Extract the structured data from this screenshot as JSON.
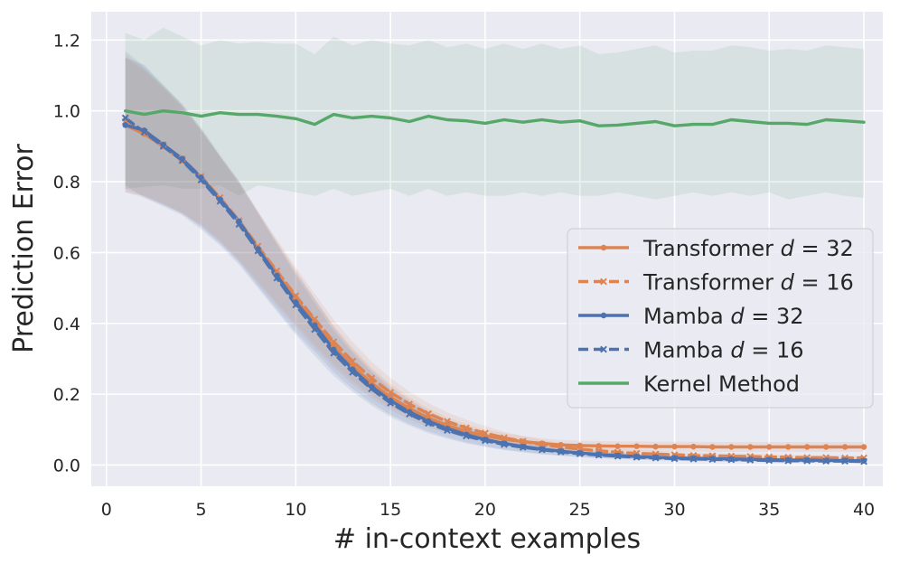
{
  "chart_data": {
    "type": "line",
    "title": "",
    "xlabel": "# in-context examples",
    "ylabel": "Prediction Error",
    "xlim": [
      -0.8,
      41
    ],
    "ylim": [
      -0.06,
      1.28
    ],
    "xticks": [
      0,
      5,
      10,
      15,
      20,
      25,
      30,
      35,
      40
    ],
    "yticks": [
      0.0,
      0.2,
      0.4,
      0.6,
      0.8,
      1.0,
      1.2
    ],
    "ytick_labels": [
      "0.0",
      "0.2",
      "0.4",
      "0.6",
      "0.8",
      "1.0",
      "1.2"
    ],
    "grid": true,
    "legend_position": "center-right",
    "x": [
      1,
      2,
      3,
      4,
      5,
      6,
      7,
      8,
      9,
      10,
      11,
      12,
      13,
      14,
      15,
      16,
      17,
      18,
      19,
      20,
      21,
      22,
      23,
      24,
      25,
      26,
      27,
      28,
      29,
      30,
      31,
      32,
      33,
      34,
      35,
      36,
      37,
      38,
      39,
      40
    ],
    "series": [
      {
        "name": "Transformer d = 32",
        "legend_prefix": "Transformer",
        "legend_var": "d",
        "legend_value": "32",
        "color": "#dd8452",
        "dash": "solid",
        "marker": "dot",
        "values": [
          0.96,
          0.935,
          0.9,
          0.86,
          0.81,
          0.75,
          0.688,
          0.613,
          0.54,
          0.47,
          0.4,
          0.335,
          0.28,
          0.232,
          0.192,
          0.16,
          0.133,
          0.112,
          0.095,
          0.082,
          0.073,
          0.066,
          0.061,
          0.057,
          0.055,
          0.054,
          0.053,
          0.053,
          0.052,
          0.052,
          0.052,
          0.051,
          0.051,
          0.051,
          0.051,
          0.051,
          0.051,
          0.051,
          0.051,
          0.051
        ],
        "band_low": [
          0.77,
          0.755,
          0.735,
          0.71,
          0.675,
          0.63,
          0.575,
          0.512,
          0.45,
          0.388,
          0.33,
          0.275,
          0.228,
          0.188,
          0.155,
          0.128,
          0.106,
          0.089,
          0.075,
          0.064,
          0.056,
          0.05,
          0.046,
          0.043,
          0.041,
          0.04,
          0.039,
          0.039,
          0.038,
          0.038,
          0.038,
          0.037,
          0.037,
          0.037,
          0.037,
          0.037,
          0.037,
          0.037,
          0.037,
          0.037
        ],
        "band_high": [
          1.15,
          1.115,
          1.065,
          1.01,
          0.945,
          0.87,
          0.8,
          0.715,
          0.63,
          0.552,
          0.47,
          0.395,
          0.332,
          0.276,
          0.229,
          0.192,
          0.16,
          0.135,
          0.115,
          0.1,
          0.09,
          0.082,
          0.076,
          0.071,
          0.069,
          0.068,
          0.067,
          0.067,
          0.066,
          0.066,
          0.066,
          0.065,
          0.065,
          0.065,
          0.065,
          0.065,
          0.065,
          0.065,
          0.065,
          0.065
        ]
      },
      {
        "name": "Transformer d = 16",
        "legend_prefix": "Transformer",
        "legend_var": "d",
        "legend_value": "16",
        "color": "#dd8452",
        "dash": "dashed",
        "marker": "x",
        "values": [
          0.97,
          0.94,
          0.905,
          0.865,
          0.815,
          0.755,
          0.69,
          0.618,
          0.548,
          0.478,
          0.412,
          0.348,
          0.293,
          0.245,
          0.205,
          0.172,
          0.145,
          0.123,
          0.105,
          0.09,
          0.077,
          0.067,
          0.058,
          0.051,
          0.045,
          0.04,
          0.036,
          0.033,
          0.031,
          0.029,
          0.027,
          0.026,
          0.025,
          0.024,
          0.023,
          0.022,
          0.021,
          0.021,
          0.02,
          0.02
        ],
        "band_low": [
          0.78,
          0.76,
          0.74,
          0.712,
          0.68,
          0.635,
          0.58,
          0.518,
          0.458,
          0.398,
          0.34,
          0.285,
          0.238,
          0.198,
          0.164,
          0.137,
          0.115,
          0.097,
          0.082,
          0.07,
          0.06,
          0.052,
          0.045,
          0.039,
          0.034,
          0.03,
          0.027,
          0.024,
          0.022,
          0.021,
          0.019,
          0.018,
          0.017,
          0.016,
          0.015,
          0.015,
          0.014,
          0.014,
          0.013,
          0.013
        ],
        "band_high": [
          1.16,
          1.12,
          1.07,
          1.018,
          0.95,
          0.875,
          0.8,
          0.718,
          0.638,
          0.558,
          0.484,
          0.411,
          0.348,
          0.292,
          0.246,
          0.207,
          0.175,
          0.149,
          0.128,
          0.11,
          0.094,
          0.082,
          0.071,
          0.063,
          0.056,
          0.05,
          0.045,
          0.042,
          0.04,
          0.037,
          0.035,
          0.034,
          0.033,
          0.032,
          0.031,
          0.029,
          0.028,
          0.028,
          0.027,
          0.027
        ]
      },
      {
        "name": "Mamba d = 32",
        "legend_prefix": "Mamba",
        "legend_var": "d",
        "legend_value": "32",
        "color": "#4c72b0",
        "dash": "solid",
        "marker": "dot",
        "values": [
          0.96,
          0.945,
          0.905,
          0.865,
          0.812,
          0.75,
          0.688,
          0.61,
          0.535,
          0.46,
          0.395,
          0.326,
          0.27,
          0.222,
          0.182,
          0.15,
          0.124,
          0.103,
          0.086,
          0.072,
          0.061,
          0.052,
          0.045,
          0.039,
          0.034,
          0.03,
          0.027,
          0.024,
          0.022,
          0.02,
          0.019,
          0.018,
          0.017,
          0.016,
          0.015,
          0.014,
          0.014,
          0.013,
          0.013,
          0.012
        ],
        "band_low": [
          0.77,
          0.76,
          0.735,
          0.71,
          0.672,
          0.625,
          0.573,
          0.505,
          0.44,
          0.375,
          0.32,
          0.262,
          0.215,
          0.175,
          0.142,
          0.116,
          0.095,
          0.078,
          0.064,
          0.053,
          0.044,
          0.037,
          0.031,
          0.027,
          0.023,
          0.02,
          0.018,
          0.016,
          0.014,
          0.013,
          0.012,
          0.011,
          0.01,
          0.01,
          0.009,
          0.009,
          0.008,
          0.008,
          0.008,
          0.007
        ],
        "band_high": [
          1.15,
          1.13,
          1.075,
          1.02,
          0.952,
          0.875,
          0.803,
          0.715,
          0.63,
          0.545,
          0.47,
          0.39,
          0.325,
          0.269,
          0.222,
          0.184,
          0.153,
          0.128,
          0.108,
          0.091,
          0.078,
          0.067,
          0.059,
          0.051,
          0.045,
          0.04,
          0.036,
          0.032,
          0.03,
          0.027,
          0.026,
          0.025,
          0.024,
          0.022,
          0.021,
          0.019,
          0.02,
          0.018,
          0.018,
          0.017
        ]
      },
      {
        "name": "Mamba d = 16",
        "legend_prefix": "Mamba",
        "legend_var": "d",
        "legend_value": "16",
        "color": "#4c72b0",
        "dash": "dashed",
        "marker": "x",
        "values": [
          0.98,
          0.94,
          0.9,
          0.86,
          0.805,
          0.745,
          0.68,
          0.605,
          0.528,
          0.452,
          0.383,
          0.316,
          0.262,
          0.215,
          0.175,
          0.144,
          0.118,
          0.098,
          0.082,
          0.069,
          0.058,
          0.05,
          0.043,
          0.037,
          0.032,
          0.028,
          0.025,
          0.022,
          0.02,
          0.018,
          0.017,
          0.016,
          0.015,
          0.014,
          0.013,
          0.012,
          0.012,
          0.011,
          0.011,
          0.01
        ],
        "band_low": [
          0.79,
          0.755,
          0.73,
          0.705,
          0.665,
          0.62,
          0.565,
          0.5,
          0.433,
          0.368,
          0.308,
          0.252,
          0.207,
          0.168,
          0.136,
          0.111,
          0.09,
          0.074,
          0.061,
          0.051,
          0.042,
          0.036,
          0.03,
          0.026,
          0.022,
          0.019,
          0.017,
          0.015,
          0.013,
          0.012,
          0.011,
          0.01,
          0.009,
          0.009,
          0.008,
          0.007,
          0.007,
          0.007,
          0.006,
          0.006
        ],
        "band_high": [
          1.17,
          1.125,
          1.07,
          1.015,
          0.945,
          0.87,
          0.795,
          0.71,
          0.623,
          0.536,
          0.458,
          0.38,
          0.317,
          0.262,
          0.214,
          0.177,
          0.146,
          0.122,
          0.103,
          0.087,
          0.074,
          0.064,
          0.056,
          0.048,
          0.042,
          0.037,
          0.033,
          0.029,
          0.027,
          0.024,
          0.023,
          0.022,
          0.021,
          0.019,
          0.018,
          0.017,
          0.017,
          0.015,
          0.016,
          0.014
        ]
      },
      {
        "name": "Kernel Method",
        "legend_prefix": "Kernel Method",
        "legend_var": "",
        "legend_value": "",
        "color": "#55a868",
        "dash": "solid",
        "marker": "none",
        "values": [
          1.0,
          0.99,
          1.0,
          0.995,
          0.985,
          0.995,
          0.99,
          0.99,
          0.985,
          0.978,
          0.962,
          0.99,
          0.98,
          0.985,
          0.98,
          0.97,
          0.985,
          0.975,
          0.972,
          0.965,
          0.975,
          0.968,
          0.975,
          0.968,
          0.972,
          0.958,
          0.96,
          0.965,
          0.97,
          0.958,
          0.962,
          0.962,
          0.975,
          0.97,
          0.965,
          0.965,
          0.962,
          0.975,
          0.972,
          0.968
        ],
        "band_low": [
          0.78,
          0.785,
          0.79,
          0.78,
          0.78,
          0.79,
          0.76,
          0.79,
          0.78,
          0.77,
          0.76,
          0.78,
          0.76,
          0.77,
          0.78,
          0.76,
          0.78,
          0.76,
          0.77,
          0.76,
          0.76,
          0.77,
          0.76,
          0.77,
          0.76,
          0.76,
          0.77,
          0.76,
          0.75,
          0.76,
          0.77,
          0.76,
          0.77,
          0.76,
          0.77,
          0.75,
          0.76,
          0.77,
          0.76,
          0.755
        ],
        "band_high": [
          1.22,
          1.2,
          1.235,
          1.21,
          1.185,
          1.2,
          1.19,
          1.195,
          1.19,
          1.19,
          1.16,
          1.21,
          1.185,
          1.2,
          1.19,
          1.185,
          1.2,
          1.18,
          1.19,
          1.175,
          1.19,
          1.175,
          1.19,
          1.175,
          1.185,
          1.16,
          1.165,
          1.175,
          1.185,
          1.165,
          1.17,
          1.17,
          1.185,
          1.18,
          1.17,
          1.175,
          1.17,
          1.185,
          1.18,
          1.175
        ]
      }
    ]
  }
}
